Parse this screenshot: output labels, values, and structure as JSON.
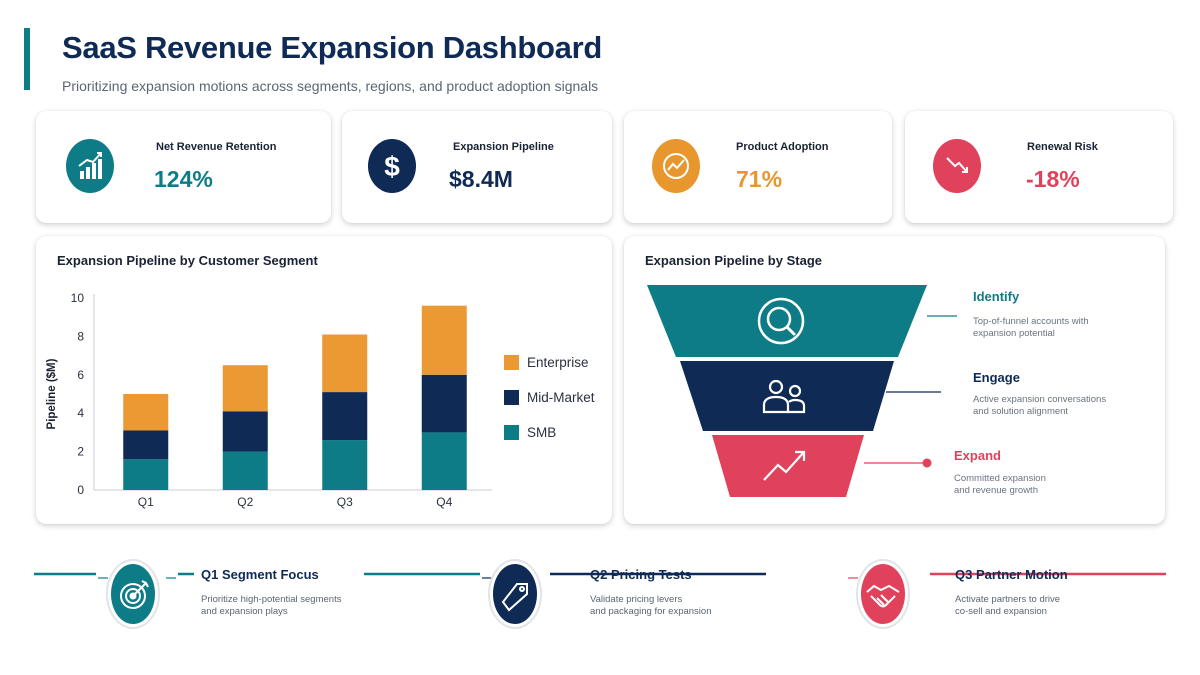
{
  "header": {
    "title": "SaaS Revenue Expansion Dashboard",
    "subtitle": "Prioritizing expansion motions across segments, regions, and product adoption signals"
  },
  "kpis": [
    {
      "label": "Net Revenue Retention",
      "value": "124%",
      "icon": "bar-chart-up-icon",
      "color": "#0e7c86"
    },
    {
      "label": "Expansion Pipeline",
      "value": "$8.4M",
      "icon": "dollar-icon",
      "color": "#0e2a55"
    },
    {
      "label": "Product Adoption",
      "value": "71%",
      "icon": "gauge-icon",
      "color": "#e8962e"
    },
    {
      "label": "Renewal Risk",
      "value": "-18%",
      "icon": "trend-down-icon",
      "color": "#e0425c"
    }
  ],
  "segment_panel": {
    "title": "Expansion Pipeline by Customer Segment"
  },
  "stage_panel": {
    "title": "Expansion Pipeline by Stage"
  },
  "chart_data": {
    "type": "bar",
    "stacked": true,
    "categories": [
      "Q1",
      "Q2",
      "Q3",
      "Q4"
    ],
    "series": [
      {
        "name": "SMB",
        "values": [
          1.6,
          2.0,
          2.6,
          3.0
        ],
        "color": "#0e7c86"
      },
      {
        "name": "Mid-Market",
        "values": [
          1.5,
          2.1,
          2.5,
          3.0
        ],
        "color": "#0e2a55"
      },
      {
        "name": "Enterprise",
        "values": [
          1.9,
          2.4,
          3.0,
          3.6
        ],
        "color": "#eb9a33"
      }
    ],
    "legend_order": [
      "Enterprise",
      "Mid-Market",
      "SMB"
    ],
    "ylabel": "Pipeline ($M)",
    "xlabel": "",
    "ylim": [
      0,
      10
    ],
    "yticks": [
      "0",
      "2",
      "4",
      "6",
      "8",
      "10"
    ],
    "grid": false,
    "legend_placement": "right"
  },
  "stages": [
    {
      "name": "Identify",
      "desc_line1": "Top-of-funnel accounts with",
      "desc_line2": "expansion potential",
      "icon": "magnifier-icon",
      "color": "#0e7c86"
    },
    {
      "name": "Engage",
      "desc_line1": "Active expansion conversations",
      "desc_line2": "and solution alignment",
      "icon": "users-icon",
      "color": "#0e2a55"
    },
    {
      "name": "Expand",
      "desc_line1": "Committed expansion",
      "desc_line2": "and revenue growth",
      "icon": "trend-up-icon",
      "color": "#e0425c"
    }
  ],
  "roadmap": [
    {
      "title": "Q1 Segment Focus",
      "desc_line1": "Prioritize high-potential segments",
      "desc_line2": "and expansion plays",
      "icon": "target-icon",
      "color": "#0e7c86"
    },
    {
      "title": "Q2 Pricing Tests",
      "desc_line1": "Validate pricing levers",
      "desc_line2": "and packaging for expansion",
      "icon": "price-tag-icon",
      "color": "#0e2a55"
    },
    {
      "title": "Q3 Partner Motion",
      "desc_line1": "Activate partners to drive",
      "desc_line2": "co-sell and expansion",
      "icon": "handshake-icon",
      "color": "#e0425c"
    }
  ]
}
